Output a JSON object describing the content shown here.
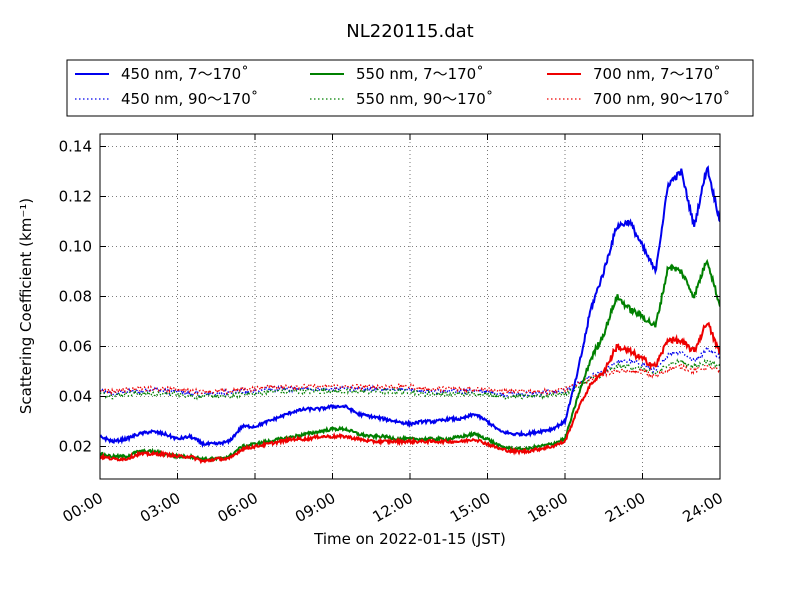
{
  "chart_data": {
    "type": "line",
    "title": "NL220115.dat",
    "xlabel": "Time on 2022-01-15 (JST)",
    "ylabel": "Scattering Coefficient (km⁻¹)",
    "xlim_hours": [
      0,
      24
    ],
    "ylim": [
      0.007,
      0.145
    ],
    "x_ticks": [
      "00:00",
      "03:00",
      "06:00",
      "09:00",
      "12:00",
      "15:00",
      "18:00",
      "21:00",
      "24:00"
    ],
    "y_ticks": [
      "0.02",
      "0.04",
      "0.06",
      "0.08",
      "0.10",
      "0.12",
      "0.14"
    ],
    "grid": true,
    "legend_position": "top, outside plot",
    "x_hours": [
      0,
      0.5,
      1,
      1.5,
      2,
      2.5,
      3,
      3.5,
      4,
      4.5,
      5,
      5.5,
      6,
      6.5,
      7,
      7.5,
      8,
      8.5,
      9,
      9.5,
      10,
      10.5,
      11,
      11.5,
      12,
      12.5,
      13,
      13.5,
      14,
      14.5,
      15,
      15.5,
      16,
      16.5,
      17,
      17.5,
      18,
      18.5,
      19,
      19.5,
      20,
      20.5,
      21,
      21.5,
      22,
      22.5,
      23,
      23.5,
      24
    ],
    "series": [
      {
        "name": "450 nm, 7～170˚",
        "color": "#0000ee",
        "style": "solid",
        "values": [
          0.024,
          0.022,
          0.023,
          0.025,
          0.026,
          0.025,
          0.023,
          0.024,
          0.021,
          0.021,
          0.022,
          0.028,
          0.028,
          0.03,
          0.032,
          0.034,
          0.035,
          0.035,
          0.036,
          0.036,
          0.033,
          0.032,
          0.031,
          0.03,
          0.029,
          0.03,
          0.03,
          0.031,
          0.031,
          0.033,
          0.03,
          0.026,
          0.025,
          0.025,
          0.026,
          0.027,
          0.03,
          0.05,
          0.075,
          0.09,
          0.108,
          0.11,
          0.1,
          0.09,
          0.125,
          0.13,
          0.108,
          0.132,
          0.11
        ]
      },
      {
        "name": "550 nm, 7～170˚",
        "color": "#008000",
        "style": "solid",
        "values": [
          0.017,
          0.016,
          0.016,
          0.018,
          0.018,
          0.017,
          0.016,
          0.016,
          0.015,
          0.015,
          0.016,
          0.02,
          0.021,
          0.022,
          0.023,
          0.024,
          0.025,
          0.026,
          0.027,
          0.027,
          0.025,
          0.024,
          0.024,
          0.023,
          0.023,
          0.023,
          0.023,
          0.023,
          0.024,
          0.025,
          0.023,
          0.02,
          0.019,
          0.019,
          0.02,
          0.021,
          0.023,
          0.04,
          0.055,
          0.065,
          0.08,
          0.075,
          0.072,
          0.068,
          0.092,
          0.09,
          0.08,
          0.095,
          0.076
        ]
      },
      {
        "name": "700 nm, 7～170˚",
        "color": "#ee0000",
        "style": "solid",
        "values": [
          0.016,
          0.015,
          0.015,
          0.017,
          0.017,
          0.017,
          0.016,
          0.016,
          0.014,
          0.015,
          0.015,
          0.019,
          0.02,
          0.021,
          0.022,
          0.023,
          0.023,
          0.024,
          0.024,
          0.024,
          0.023,
          0.022,
          0.022,
          0.022,
          0.022,
          0.022,
          0.022,
          0.022,
          0.022,
          0.023,
          0.021,
          0.019,
          0.018,
          0.018,
          0.019,
          0.02,
          0.022,
          0.035,
          0.045,
          0.05,
          0.06,
          0.058,
          0.055,
          0.052,
          0.063,
          0.062,
          0.058,
          0.07,
          0.057
        ]
      },
      {
        "name": "450 nm, 90～170˚",
        "color": "#0000ee",
        "style": "dotted",
        "values": [
          0.042,
          0.041,
          0.042,
          0.042,
          0.043,
          0.042,
          0.042,
          0.041,
          0.041,
          0.041,
          0.042,
          0.042,
          0.042,
          0.043,
          0.043,
          0.043,
          0.043,
          0.043,
          0.043,
          0.043,
          0.043,
          0.043,
          0.043,
          0.043,
          0.043,
          0.042,
          0.042,
          0.042,
          0.042,
          0.042,
          0.042,
          0.041,
          0.041,
          0.041,
          0.041,
          0.042,
          0.042,
          0.045,
          0.048,
          0.05,
          0.054,
          0.054,
          0.053,
          0.05,
          0.057,
          0.058,
          0.054,
          0.059,
          0.056
        ]
      },
      {
        "name": "550 nm, 90～170˚",
        "color": "#008000",
        "style": "dotted",
        "values": [
          0.041,
          0.04,
          0.041,
          0.041,
          0.041,
          0.041,
          0.041,
          0.04,
          0.04,
          0.04,
          0.04,
          0.041,
          0.041,
          0.042,
          0.042,
          0.042,
          0.042,
          0.042,
          0.042,
          0.042,
          0.042,
          0.042,
          0.042,
          0.042,
          0.042,
          0.041,
          0.041,
          0.041,
          0.041,
          0.041,
          0.041,
          0.04,
          0.04,
          0.04,
          0.04,
          0.041,
          0.041,
          0.044,
          0.047,
          0.049,
          0.052,
          0.052,
          0.051,
          0.049,
          0.053,
          0.054,
          0.052,
          0.054,
          0.052
        ]
      },
      {
        "name": "700 nm, 90～170˚",
        "color": "#ee0000",
        "style": "dotted",
        "values": [
          0.043,
          0.042,
          0.043,
          0.043,
          0.043,
          0.043,
          0.043,
          0.042,
          0.042,
          0.042,
          0.042,
          0.043,
          0.043,
          0.044,
          0.044,
          0.044,
          0.044,
          0.044,
          0.044,
          0.044,
          0.044,
          0.044,
          0.044,
          0.044,
          0.044,
          0.043,
          0.043,
          0.043,
          0.043,
          0.043,
          0.043,
          0.042,
          0.042,
          0.042,
          0.042,
          0.042,
          0.043,
          0.045,
          0.047,
          0.049,
          0.05,
          0.05,
          0.05,
          0.048,
          0.051,
          0.052,
          0.05,
          0.052,
          0.05
        ]
      }
    ]
  }
}
